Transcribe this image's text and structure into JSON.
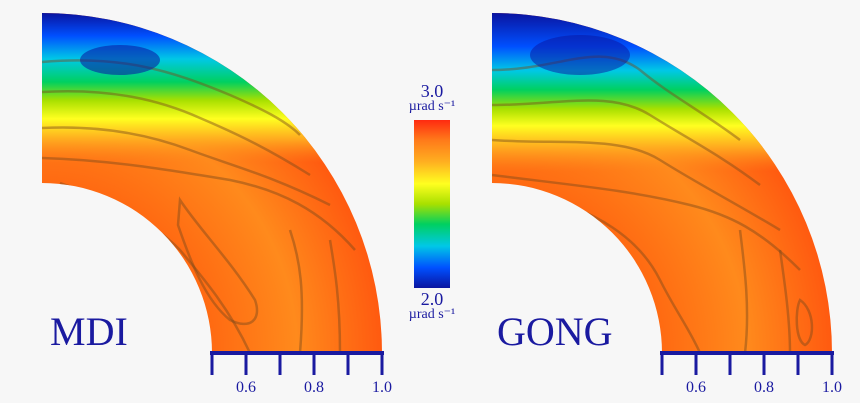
{
  "chart_data": [
    {
      "type": "heatmap",
      "panel_label": "MDI",
      "geometry": "quarter-disk (equator to pole) of rotation rate versus radius",
      "x_ticks": [
        0.5,
        0.6,
        0.7,
        0.8,
        0.9,
        1.0
      ],
      "x_tick_labels": [
        "0.6",
        "0.8",
        "1.0"
      ],
      "r_range": [
        0.5,
        1.0
      ],
      "colorbar": {
        "min": 2.0,
        "max": 3.0,
        "unit": "µrad s⁻¹"
      }
    },
    {
      "type": "heatmap",
      "panel_label": "GONG",
      "geometry": "quarter-disk (equator to pole) of rotation rate versus radius",
      "x_ticks": [
        0.5,
        0.6,
        0.7,
        0.8,
        0.9,
        1.0
      ],
      "x_tick_labels": [
        "0.6",
        "0.8",
        "1.0"
      ],
      "r_range": [
        0.5,
        1.0
      ],
      "colorbar": {
        "min": 2.0,
        "max": 3.0,
        "unit": "µrad s⁻¹"
      }
    }
  ],
  "colorbar": {
    "max_label": "3.0",
    "min_label": "2.0",
    "unit_text": "µrad s⁻¹",
    "colors": [
      "#0a14a0",
      "#0050ff",
      "#00c8e6",
      "#00d060",
      "#a8e000",
      "#ffff20",
      "#ffb020",
      "#ff7a1a",
      "#ff2a10"
    ]
  },
  "palette": {
    "label_color": "#1a1aa0",
    "contour_color": "#7a4a1a"
  }
}
